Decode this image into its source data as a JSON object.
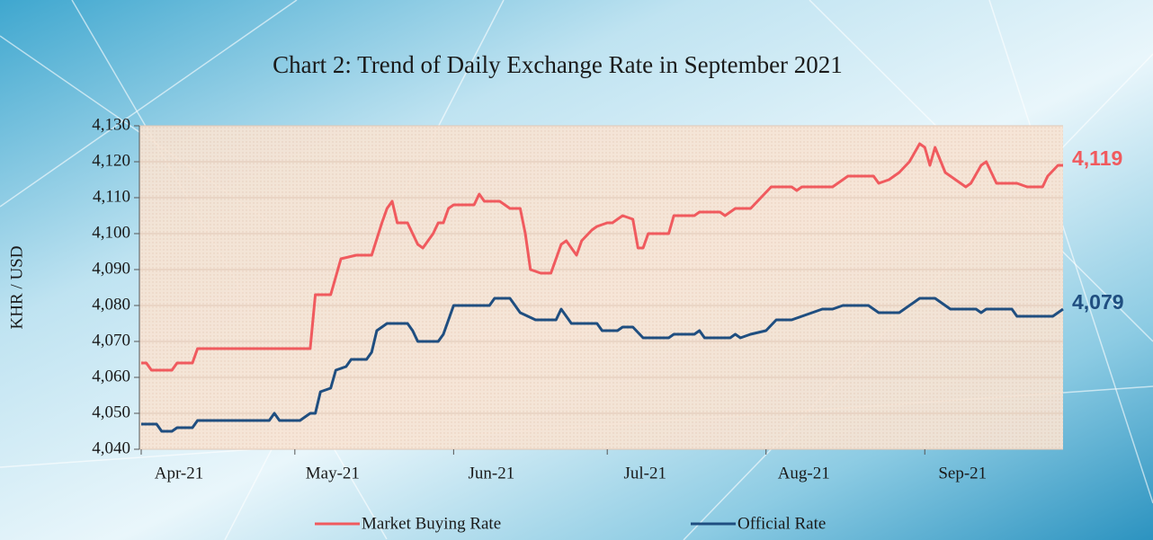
{
  "chart_data": {
    "type": "line",
    "title": "Chart 2: Trend of Daily Exchange Rate in September 2021",
    "y_label": "KHR / USD",
    "xlim": [
      0,
      180
    ],
    "xticks": [
      {
        "value": 0,
        "label": "Apr-21"
      },
      {
        "value": 30,
        "label": "May-21"
      },
      {
        "value": 61,
        "label": "Jun-21"
      },
      {
        "value": 91,
        "label": "Jul-21"
      },
      {
        "value": 122,
        "label": "Aug-21"
      },
      {
        "value": 153,
        "label": "Sep-21"
      }
    ],
    "ylim": [
      4040,
      4130
    ],
    "yticks": [
      {
        "value": 4040,
        "label": "4,040"
      },
      {
        "value": 4050,
        "label": "4,050"
      },
      {
        "value": 4060,
        "label": "4,060"
      },
      {
        "value": 4070,
        "label": "4,070"
      },
      {
        "value": 4080,
        "label": "4,080"
      },
      {
        "value": 4090,
        "label": "4,090"
      },
      {
        "value": 4100,
        "label": "4,100"
      },
      {
        "value": 4110,
        "label": "4,110"
      },
      {
        "value": 4120,
        "label": "4,120"
      },
      {
        "value": 4130,
        "label": "4,130"
      }
    ],
    "grid": true,
    "series": [
      {
        "name": "Market Buying Rate",
        "color": "#f05a5e",
        "end_label": "4,119",
        "x": [
          0,
          1,
          2,
          6,
          7,
          10,
          11,
          33,
          34,
          37,
          39,
          42,
          45,
          47,
          48,
          49,
          50,
          52,
          53,
          54,
          55,
          57,
          58,
          59,
          60,
          61,
          63,
          65,
          66,
          67,
          70,
          72,
          74,
          75,
          76,
          78,
          80,
          82,
          83,
          85,
          86,
          88,
          89,
          91,
          92,
          94,
          96,
          97,
          98,
          99,
          103,
          104,
          108,
          109,
          113,
          114,
          116,
          119,
          121,
          123,
          127,
          128,
          129,
          135,
          136,
          138,
          143,
          144,
          146,
          148,
          150,
          152,
          153,
          154,
          155,
          157,
          159,
          161,
          162,
          164,
          165,
          167,
          171,
          173,
          176,
          177,
          179,
          180
        ],
        "values": [
          4064,
          4064,
          4062,
          4062,
          4064,
          4064,
          4068,
          4068,
          4083,
          4083,
          4093,
          4094,
          4094,
          4103,
          4107,
          4109,
          4103,
          4103,
          4100,
          4097,
          4096,
          4100,
          4103,
          4103,
          4107,
          4108,
          4108,
          4108,
          4111,
          4109,
          4109,
          4107,
          4107,
          4100,
          4090,
          4089,
          4089,
          4097,
          4098,
          4094,
          4098,
          4101,
          4102,
          4103,
          4103,
          4105,
          4104,
          4096,
          4096,
          4100,
          4100,
          4105,
          4105,
          4106,
          4106,
          4105,
          4107,
          4107,
          4110,
          4113,
          4113,
          4112,
          4113,
          4113,
          4114,
          4116,
          4116,
          4114,
          4115,
          4117,
          4120,
          4125,
          4124,
          4119,
          4124,
          4117,
          4115,
          4113,
          4114,
          4119,
          4120,
          4114,
          4114,
          4113,
          4113,
          4116,
          4119,
          4119
        ]
      },
      {
        "name": "Official Rate",
        "color": "#1f4e80",
        "end_label": "4,079",
        "x": [
          0,
          3,
          4,
          6,
          7,
          10,
          11,
          25,
          26,
          27,
          31,
          33,
          34,
          35,
          37,
          38,
          40,
          41,
          44,
          45,
          46,
          48,
          52,
          53,
          54,
          58,
          59,
          61,
          68,
          69,
          72,
          74,
          77,
          81,
          82,
          84,
          89,
          90,
          93,
          94,
          96,
          98,
          103,
          104,
          108,
          109,
          110,
          115,
          116,
          117,
          119,
          122,
          124,
          127,
          129,
          131,
          133,
          135,
          137,
          142,
          144,
          148,
          152,
          155,
          158,
          163,
          164,
          165,
          170,
          171,
          178,
          180
        ],
        "values": [
          4047,
          4047,
          4045,
          4045,
          4046,
          4046,
          4048,
          4048,
          4050,
          4048,
          4048,
          4050,
          4050,
          4056,
          4057,
          4062,
          4063,
          4065,
          4065,
          4067,
          4073,
          4075,
          4075,
          4073,
          4070,
          4070,
          4072,
          4080,
          4080,
          4082,
          4082,
          4078,
          4076,
          4076,
          4079,
          4075,
          4075,
          4073,
          4073,
          4074,
          4074,
          4071,
          4071,
          4072,
          4072,
          4073,
          4071,
          4071,
          4072,
          4071,
          4072,
          4073,
          4076,
          4076,
          4077,
          4078,
          4079,
          4079,
          4080,
          4080,
          4078,
          4078,
          4082,
          4082,
          4079,
          4079,
          4078,
          4079,
          4079,
          4077,
          4077,
          4079
        ]
      }
    ]
  }
}
